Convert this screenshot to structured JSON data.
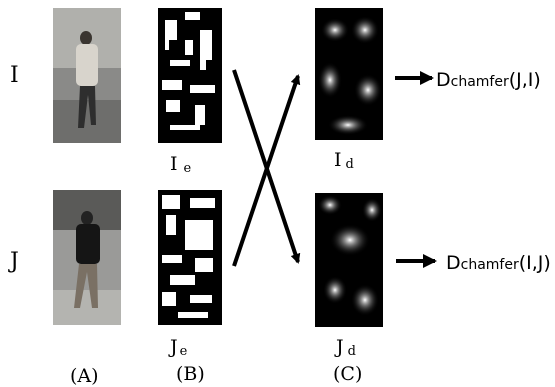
{
  "rows": [
    "I",
    "J"
  ],
  "columns": [
    "(A)",
    "(B)",
    "(C)"
  ],
  "captions": [
    {
      "base": "I",
      "sub": "e"
    },
    {
      "base": "I",
      "sub": "d"
    },
    {
      "base": "J",
      "sub": "e"
    },
    {
      "base": "J",
      "sub": "d"
    }
  ],
  "outputs": [
    {
      "base": "D",
      "sub": "chamfer",
      "args": "(J,I)"
    },
    {
      "base": "D",
      "sub": "chamfer",
      "args": "(I,J)"
    }
  ]
}
